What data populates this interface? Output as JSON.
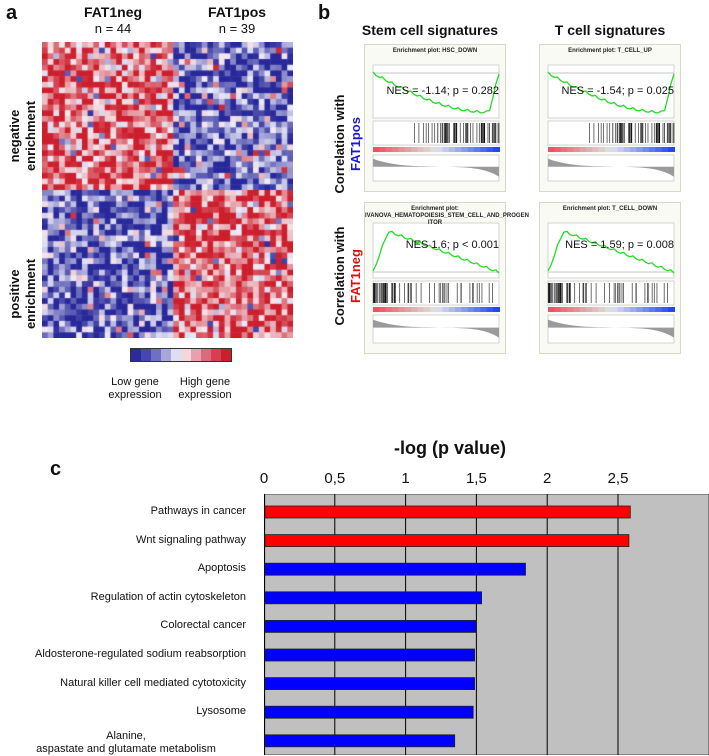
{
  "panel_a": {
    "letter": "a",
    "group1": {
      "name": "FAT1neg",
      "n": "n = 44"
    },
    "group2": {
      "name": "FAT1pos",
      "n": "n = 39"
    },
    "row_top_label": [
      "negative",
      "enrichment"
    ],
    "row_bottom_label": [
      "positive",
      "enrichment"
    ],
    "legend_low": [
      "Low gene",
      "expression"
    ],
    "legend_high": [
      "High gene",
      "expression"
    ],
    "legend_colors": [
      "#2b2b9a",
      "#4646b0",
      "#6f6fc4",
      "#a7a7dc",
      "#dedef2",
      "#f4d6dc",
      "#e8a0ac",
      "#dc6a7c",
      "#d4404f",
      "#cc1e2c"
    ]
  },
  "panel_b": {
    "letter": "b",
    "col1": "Stem cell signatures",
    "col2": "T cell signatures",
    "row1_label": "Correlation with",
    "row1_group": "FAT1pos",
    "row1_color": "#1a1acc",
    "row2_label": "Correlation with",
    "row2_group": "FAT1neg",
    "row2_color": "#dd1111",
    "plots": [
      {
        "title_lines": [
          "Enrichment plot: HSC_DOWN"
        ],
        "nes": "NES = -1.14; p = 0.282",
        "direction": "negative"
      },
      {
        "title_lines": [
          "Enrichment plot: T_CELL_UP"
        ],
        "nes": "NES = -1.54; p = 0.025",
        "direction": "negative"
      },
      {
        "title_lines": [
          "Enrichment plot:",
          "IVANOVA_HEMATOPOIESIS_STEM_CELL_AND_PROGEN",
          "ITOR"
        ],
        "nes": "NES 1.6; p < 0.001",
        "direction": "positive"
      },
      {
        "title_lines": [
          "Enrichment plot: T_CELL_DOWN"
        ],
        "nes": "NES = 1.59; p = 0.008",
        "direction": "positive"
      }
    ]
  },
  "panel_c": {
    "letter": "c"
  },
  "chart_data": {
    "type": "bar",
    "orientation": "horizontal",
    "title": "-log (p value)",
    "xlabel": "-log (p value)",
    "xlim": [
      0,
      3.05
    ],
    "xticks": [
      "0",
      "0,5",
      "1",
      "1,5",
      "2",
      "2,5"
    ],
    "xtick_values": [
      0,
      0.5,
      1,
      1.5,
      2,
      2.5
    ],
    "grid": true,
    "background": "#c0c0c0",
    "categories": [
      "Pathways in cancer",
      "Wnt signaling pathway",
      "Apoptosis",
      "Regulation of actin cytoskeleton",
      "Colorectal cancer",
      "Aldosterone-regulated sodium reabsorption",
      "Natural killer cell mediated cytotoxicity",
      "Lysosome",
      "Alanine, aspastate and glutamate metabolism"
    ],
    "values": [
      2.58,
      2.57,
      1.84,
      1.53,
      1.49,
      1.48,
      1.48,
      1.47,
      1.34
    ],
    "colors": [
      "#ff0000",
      "#ff0000",
      "#0000ff",
      "#0000ff",
      "#0000ff",
      "#0000ff",
      "#0000ff",
      "#0000ff",
      "#0000ff"
    ]
  }
}
